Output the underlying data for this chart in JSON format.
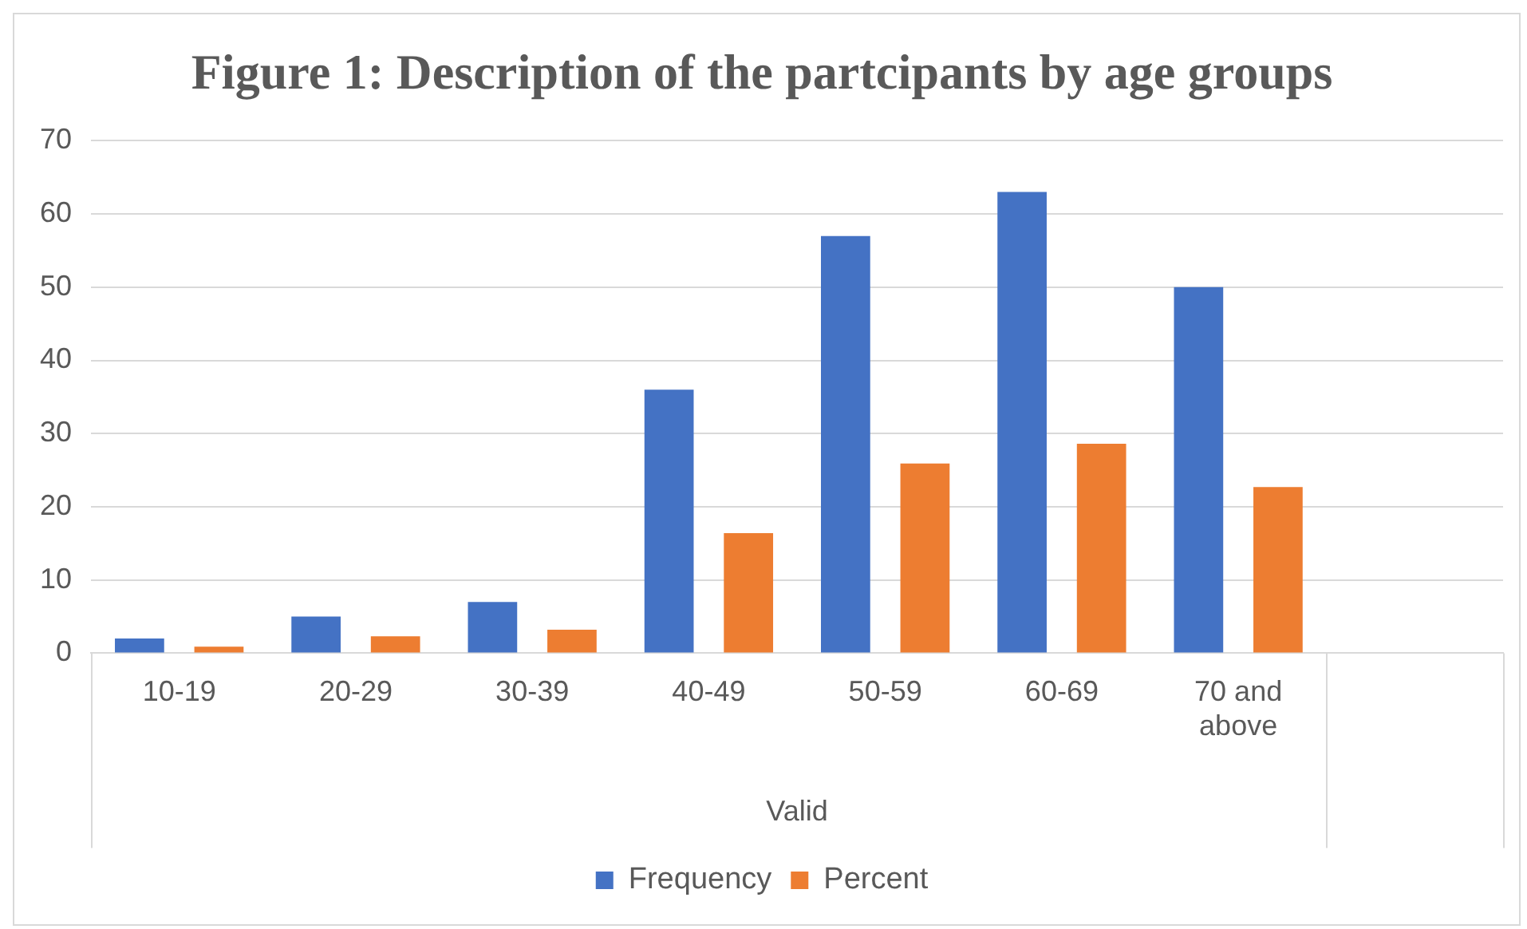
{
  "chart_data": {
    "type": "bar",
    "title": "Figure 1: Description of the partcipants by age groups",
    "xlabel": "Valid",
    "categories": [
      "10-19",
      "20-29",
      "30-39",
      "40-49",
      "50-59",
      "60-69",
      "70 and above",
      null
    ],
    "series": [
      {
        "name": "Frequency",
        "color": "#4472c4",
        "values": [
          2,
          5,
          7,
          36,
          57,
          63,
          50,
          null
        ]
      },
      {
        "name": "Percent",
        "color": "#ed7d31",
        "values": [
          0.9,
          2.3,
          3.2,
          16.4,
          25.9,
          28.6,
          22.7,
          null
        ]
      }
    ],
    "ylim": [
      0,
      70
    ],
    "yticks": [
      0,
      10,
      20,
      30,
      40,
      50,
      60,
      70
    ],
    "grid": "y",
    "legend": "bottom"
  }
}
